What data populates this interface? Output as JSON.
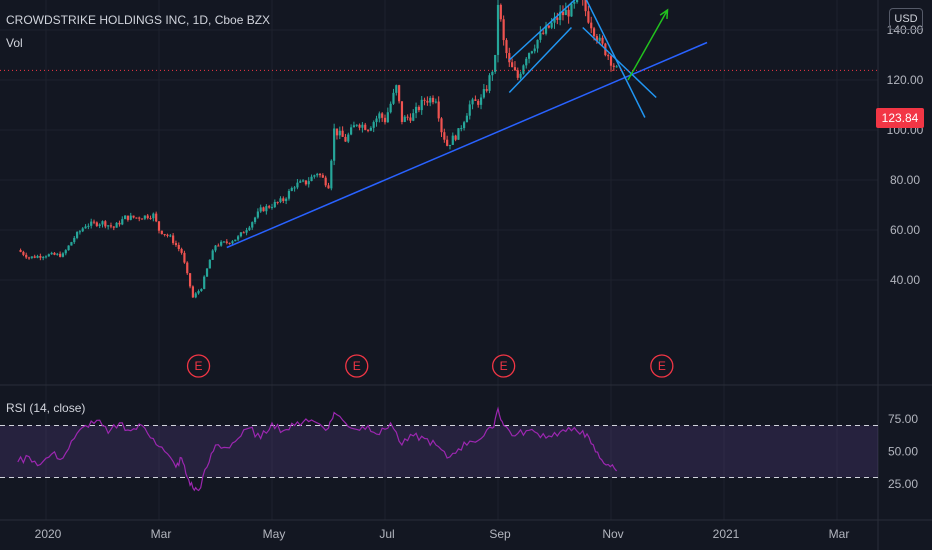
{
  "header": {
    "title": "CROWDSTRIKE HOLDINGS INC, 1D, Cboe BZX",
    "volume_label": "Vol",
    "currency": "USD"
  },
  "last_price": {
    "label": "123.84",
    "value": 123.84,
    "color": "#f23645"
  },
  "chart_data": [
    {
      "type": "candlestick",
      "title": "CROWDSTRIKE HOLDINGS INC, 1D, Cboe BZX",
      "x_ticks": [
        "2020",
        "Mar",
        "May",
        "Jul",
        "Sep",
        "Nov",
        "2021",
        "Mar"
      ],
      "x_tick_months": [
        0,
        2,
        4,
        6,
        8,
        10,
        12,
        14
      ],
      "y_ticks": [
        "40.00",
        "60.00",
        "80.00",
        "100.00",
        "120.00",
        "140.00"
      ],
      "y_tick_values": [
        40,
        60,
        80,
        100,
        120,
        140
      ],
      "ylim": [
        22,
        157
      ],
      "close_series_month_value": [
        [
          -0.5,
          52
        ],
        [
          -0.3,
          49
        ],
        [
          0.0,
          50
        ],
        [
          0.3,
          50
        ],
        [
          0.5,
          57
        ],
        [
          0.7,
          62
        ],
        [
          1.0,
          63
        ],
        [
          1.2,
          61
        ],
        [
          1.4,
          65
        ],
        [
          1.6,
          65
        ],
        [
          1.9,
          66
        ],
        [
          2.0,
          60
        ],
        [
          2.2,
          57
        ],
        [
          2.4,
          51
        ],
        [
          2.5,
          42
        ],
        [
          2.6,
          33
        ],
        [
          2.75,
          37
        ],
        [
          2.9,
          48
        ],
        [
          3.0,
          54
        ],
        [
          3.2,
          55
        ],
        [
          3.4,
          57
        ],
        [
          3.6,
          62
        ],
        [
          3.8,
          68
        ],
        [
          4.0,
          70
        ],
        [
          4.2,
          72
        ],
        [
          4.4,
          78
        ],
        [
          4.6,
          79
        ],
        [
          4.8,
          83
        ],
        [
          5.0,
          78
        ],
        [
          5.1,
          100
        ],
        [
          5.3,
          96
        ],
        [
          5.5,
          103
        ],
        [
          5.7,
          101
        ],
        [
          5.9,
          106
        ],
        [
          6.0,
          104
        ],
        [
          6.2,
          117
        ],
        [
          6.3,
          104
        ],
        [
          6.5,
          106
        ],
        [
          6.7,
          112
        ],
        [
          6.9,
          113
        ],
        [
          7.0,
          100
        ],
        [
          7.1,
          94
        ],
        [
          7.3,
          99
        ],
        [
          7.5,
          110
        ],
        [
          7.7,
          112
        ],
        [
          7.8,
          117
        ],
        [
          7.95,
          128
        ],
        [
          8.0,
          151
        ],
        [
          8.1,
          135
        ],
        [
          8.2,
          126
        ],
        [
          8.35,
          121
        ],
        [
          8.5,
          130
        ],
        [
          8.7,
          136
        ],
        [
          8.9,
          141
        ],
        [
          9.1,
          146
        ],
        [
          9.3,
          148
        ],
        [
          9.45,
          153
        ],
        [
          9.6,
          145
        ],
        [
          9.8,
          135
        ],
        [
          9.95,
          130
        ],
        [
          10.1,
          123.84
        ]
      ],
      "earnings_markers": [
        {
          "label": "E",
          "month": 2.7
        },
        {
          "label": "E",
          "month": 5.5
        },
        {
          "label": "E",
          "month": 8.1
        },
        {
          "label": "E",
          "month": 10.9
        }
      ],
      "annotations": [
        {
          "kind": "trendline",
          "from": [
            3.2,
            53
          ],
          "to": [
            11.7,
            135
          ],
          "color": "#2962ff"
        },
        {
          "kind": "channel",
          "from": [
            8.2,
            128
          ],
          "to": [
            9.5,
            155
          ],
          "color": "#2196f3"
        },
        {
          "kind": "channel",
          "from": [
            8.2,
            115
          ],
          "to": [
            9.3,
            141
          ],
          "color": "#2196f3"
        },
        {
          "kind": "trendline",
          "from": [
            9.5,
            155
          ],
          "to": [
            10.6,
            105
          ],
          "color": "#2196f3"
        },
        {
          "kind": "trendline",
          "from": [
            9.5,
            141
          ],
          "to": [
            10.8,
            113
          ],
          "color": "#2196f3"
        },
        {
          "kind": "arrow",
          "from": [
            10.3,
            120
          ],
          "to": [
            11.0,
            148
          ],
          "color": "#22c31e"
        }
      ]
    },
    {
      "type": "line",
      "title": "RSI (14, close)",
      "y_ticks": [
        "25.00",
        "50.00",
        "75.00"
      ],
      "y_tick_values": [
        25,
        50,
        75
      ],
      "ylim": [
        10,
        88
      ],
      "bands": [
        30,
        70
      ],
      "band_fill": "#7e57c2",
      "line_color": "#9c27b0",
      "series_month_value": [
        [
          -0.5,
          42
        ],
        [
          -0.3,
          46
        ],
        [
          -0.1,
          40
        ],
        [
          0.1,
          48
        ],
        [
          0.3,
          45
        ],
        [
          0.5,
          60
        ],
        [
          0.7,
          70
        ],
        [
          0.9,
          74
        ],
        [
          1.1,
          64
        ],
        [
          1.3,
          72
        ],
        [
          1.5,
          66
        ],
        [
          1.7,
          70
        ],
        [
          1.9,
          60
        ],
        [
          2.1,
          50
        ],
        [
          2.3,
          38
        ],
        [
          2.4,
          45
        ],
        [
          2.5,
          30
        ],
        [
          2.6,
          22
        ],
        [
          2.7,
          20
        ],
        [
          2.85,
          38
        ],
        [
          3.0,
          55
        ],
        [
          3.2,
          53
        ],
        [
          3.4,
          60
        ],
        [
          3.6,
          68
        ],
        [
          3.8,
          60
        ],
        [
          4.0,
          72
        ],
        [
          4.2,
          66
        ],
        [
          4.4,
          70
        ],
        [
          4.6,
          75
        ],
        [
          4.8,
          72
        ],
        [
          5.0,
          68
        ],
        [
          5.1,
          80
        ],
        [
          5.3,
          72
        ],
        [
          5.5,
          67
        ],
        [
          5.7,
          70
        ],
        [
          5.9,
          63
        ],
        [
          6.1,
          72
        ],
        [
          6.3,
          55
        ],
        [
          6.5,
          62
        ],
        [
          6.7,
          60
        ],
        [
          6.9,
          55
        ],
        [
          7.1,
          45
        ],
        [
          7.3,
          52
        ],
        [
          7.5,
          58
        ],
        [
          7.7,
          60
        ],
        [
          7.9,
          68
        ],
        [
          8.0,
          83
        ],
        [
          8.1,
          70
        ],
        [
          8.3,
          62
        ],
        [
          8.5,
          66
        ],
        [
          8.7,
          64
        ],
        [
          8.9,
          62
        ],
        [
          9.1,
          65
        ],
        [
          9.3,
          66
        ],
        [
          9.5,
          66
        ],
        [
          9.65,
          56
        ],
        [
          9.8,
          45
        ],
        [
          9.95,
          40
        ],
        [
          10.1,
          35
        ]
      ]
    }
  ]
}
